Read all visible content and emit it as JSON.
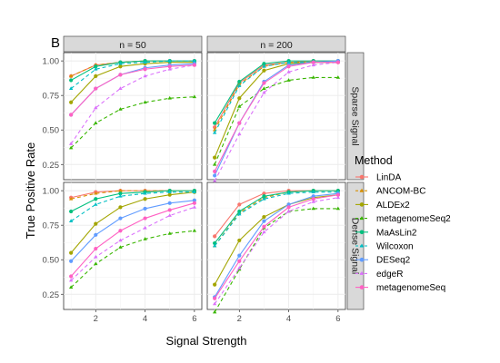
{
  "chart_data": {
    "type": "line",
    "panel_tag": "B",
    "xlabel": "Signal Strength",
    "ylabel": "True Positive Rate",
    "xlim": [
      0.7,
      6.3
    ],
    "ylim": [
      0.14,
      1.06
    ],
    "x_ticks": [
      2,
      4,
      6
    ],
    "y_ticks": [
      0.25,
      0.5,
      0.75,
      1.0
    ],
    "y_tick_labels": [
      "0.25",
      "0.50",
      "0.75",
      "1.00"
    ],
    "x": [
      1,
      2,
      3,
      4,
      5,
      6
    ],
    "column_labels": [
      "n = 50",
      "n = 200"
    ],
    "row_labels": [
      "Sparse Signal",
      "Dense Signal"
    ],
    "legend": {
      "title": "Method",
      "position": "right"
    },
    "methods": [
      {
        "name": "LinDA",
        "color": "#F8766D",
        "marker": "circle",
        "dash": "solid"
      },
      {
        "name": "ANCOM-BC",
        "color": "#D89000",
        "marker": "triangle",
        "dash": "dashed"
      },
      {
        "name": "ALDEx2",
        "color": "#A3A500",
        "marker": "circle",
        "dash": "solid"
      },
      {
        "name": "metagenomeSeq2",
        "color": "#39B600",
        "marker": "triangle",
        "dash": "dashed"
      },
      {
        "name": "MaAsLin2",
        "color": "#00BF7D",
        "marker": "circle",
        "dash": "solid"
      },
      {
        "name": "Wilcoxon",
        "color": "#00BFC4",
        "marker": "triangle",
        "dash": "dashed"
      },
      {
        "name": "DESeq2",
        "color": "#619CFF",
        "marker": "circle",
        "dash": "solid"
      },
      {
        "name": "edgeR",
        "color": "#DB72FB",
        "marker": "triangle",
        "dash": "dashed"
      },
      {
        "name": "metagenomeSeq",
        "color": "#FF61C3",
        "marker": "circle",
        "dash": "solid"
      }
    ],
    "panels": [
      {
        "column": "n = 50",
        "row": "Sparse Signal",
        "series": [
          {
            "name": "LinDA",
            "values": [
              0.89,
              0.97,
              0.99,
              1.0,
              1.0,
              1.0
            ]
          },
          {
            "name": "ANCOM-BC",
            "values": [
              0.89,
              0.97,
              0.99,
              1.0,
              1.0,
              1.0
            ]
          },
          {
            "name": "ALDEx2",
            "values": [
              0.7,
              0.89,
              0.96,
              0.98,
              0.99,
              0.99
            ]
          },
          {
            "name": "metagenomeSeq2",
            "values": [
              0.37,
              0.55,
              0.65,
              0.7,
              0.73,
              0.74
            ]
          },
          {
            "name": "MaAsLin2",
            "values": [
              0.86,
              0.96,
              0.99,
              1.0,
              1.0,
              1.0
            ]
          },
          {
            "name": "Wilcoxon",
            "values": [
              0.8,
              0.94,
              0.98,
              0.99,
              1.0,
              1.0
            ]
          },
          {
            "name": "DESeq2",
            "values": [
              0.61,
              0.8,
              0.9,
              0.95,
              0.97,
              0.98
            ]
          },
          {
            "name": "edgeR",
            "values": [
              0.4,
              0.66,
              0.8,
              0.89,
              0.94,
              0.97
            ]
          },
          {
            "name": "metagenomeSeq",
            "values": [
              0.61,
              0.8,
              0.9,
              0.94,
              0.96,
              0.97
            ]
          }
        ]
      },
      {
        "column": "n = 200",
        "row": "Sparse Signal",
        "series": [
          {
            "name": "LinDA",
            "values": [
              0.52,
              0.84,
              0.97,
              0.99,
              1.0,
              1.0
            ]
          },
          {
            "name": "ANCOM-BC",
            "values": [
              0.5,
              0.83,
              0.96,
              0.99,
              0.99,
              0.99
            ]
          },
          {
            "name": "ALDEx2",
            "values": [
              0.3,
              0.73,
              0.93,
              0.98,
              0.99,
              0.99
            ]
          },
          {
            "name": "metagenomeSeq2",
            "values": [
              0.25,
              0.67,
              0.8,
              0.86,
              0.88,
              0.88
            ]
          },
          {
            "name": "MaAsLin2",
            "values": [
              0.55,
              0.85,
              0.98,
              1.0,
              1.0,
              1.0
            ]
          },
          {
            "name": "Wilcoxon",
            "values": [
              0.48,
              0.82,
              0.96,
              0.99,
              0.99,
              0.99
            ]
          },
          {
            "name": "DESeq2",
            "values": [
              0.17,
              0.55,
              0.85,
              0.97,
              0.99,
              1.0
            ]
          },
          {
            "name": "edgeR",
            "values": [
              0.13,
              0.47,
              0.77,
              0.92,
              0.97,
              0.99
            ]
          },
          {
            "name": "metagenomeSeq",
            "values": [
              0.2,
              0.55,
              0.84,
              0.96,
              0.99,
              0.99
            ]
          }
        ]
      },
      {
        "column": "n = 50",
        "row": "Dense Signal",
        "series": [
          {
            "name": "LinDA",
            "values": [
              0.95,
              0.99,
              1.0,
              1.0,
              1.0,
              1.0
            ]
          },
          {
            "name": "ANCOM-BC",
            "values": [
              0.94,
              0.98,
              1.0,
              1.0,
              1.0,
              1.0
            ]
          },
          {
            "name": "ALDEx2",
            "values": [
              0.55,
              0.76,
              0.88,
              0.94,
              0.97,
              0.99
            ]
          },
          {
            "name": "metagenomeSeq2",
            "values": [
              0.3,
              0.47,
              0.59,
              0.65,
              0.69,
              0.71
            ]
          },
          {
            "name": "MaAsLin2",
            "values": [
              0.85,
              0.94,
              0.98,
              0.99,
              1.0,
              1.0
            ]
          },
          {
            "name": "Wilcoxon",
            "values": [
              0.78,
              0.9,
              0.96,
              0.98,
              0.99,
              0.99
            ]
          },
          {
            "name": "DESeq2",
            "values": [
              0.49,
              0.68,
              0.8,
              0.87,
              0.91,
              0.93
            ]
          },
          {
            "name": "edgeR",
            "values": [
              0.35,
              0.52,
              0.64,
              0.73,
              0.82,
              0.88
            ]
          },
          {
            "name": "metagenomeSeq",
            "values": [
              0.38,
              0.58,
              0.71,
              0.8,
              0.86,
              0.91
            ]
          }
        ]
      },
      {
        "column": "n = 200",
        "row": "Dense Signal",
        "series": [
          {
            "name": "LinDA",
            "values": [
              0.67,
              0.9,
              0.98,
              1.0,
              1.0,
              1.0
            ]
          },
          {
            "name": "ANCOM-BC",
            "values": [
              0.6,
              0.84,
              0.95,
              0.99,
              1.0,
              1.0
            ]
          },
          {
            "name": "ALDEx2",
            "values": [
              0.32,
              0.64,
              0.81,
              0.9,
              0.95,
              0.97
            ]
          },
          {
            "name": "metagenomeSeq2",
            "values": [
              0.12,
              0.43,
              0.73,
              0.85,
              0.87,
              0.87
            ]
          },
          {
            "name": "MaAsLin2",
            "values": [
              0.62,
              0.85,
              0.96,
              0.99,
              1.0,
              1.0
            ]
          },
          {
            "name": "Wilcoxon",
            "values": [
              0.6,
              0.83,
              0.94,
              0.98,
              0.99,
              0.99
            ]
          },
          {
            "name": "DESeq2",
            "values": [
              0.23,
              0.53,
              0.78,
              0.9,
              0.96,
              0.98
            ]
          },
          {
            "name": "edgeR",
            "values": [
              0.18,
              0.44,
              0.7,
              0.85,
              0.92,
              0.95
            ]
          },
          {
            "name": "metagenomeSeq",
            "values": [
              0.22,
              0.49,
              0.74,
              0.88,
              0.94,
              0.97
            ]
          }
        ]
      }
    ]
  }
}
